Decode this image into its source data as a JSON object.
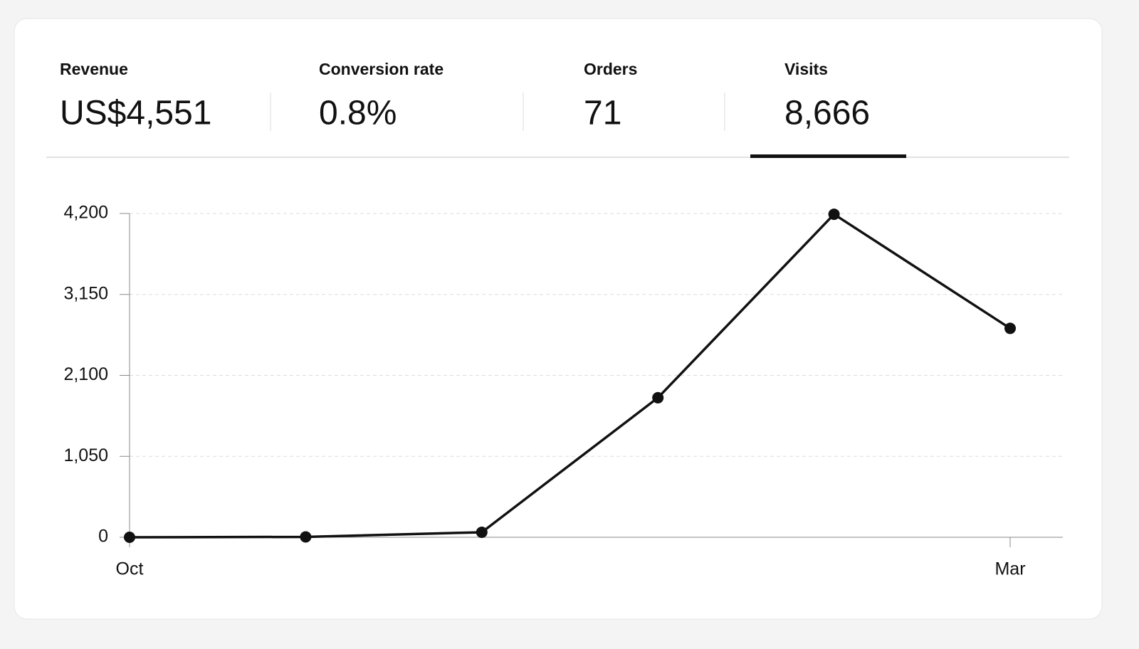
{
  "metrics": [
    {
      "label": "Revenue",
      "value": "US$4,551"
    },
    {
      "label": "Conversion rate",
      "value": "0.8%"
    },
    {
      "label": "Orders",
      "value": "71"
    },
    {
      "label": "Visits",
      "value": "8,666"
    }
  ],
  "chart_data": {
    "type": "line",
    "categories": [
      "Oct",
      null,
      null,
      null,
      null,
      "Mar"
    ],
    "values": [
      0,
      5,
      65,
      1810,
      4190,
      2710
    ],
    "color": "#111111",
    "ylim": [
      0,
      4200
    ],
    "yticks": [
      0,
      {
        "value": 1050,
        "label": "1,050"
      },
      {
        "value": 2100,
        "label": "2,100"
      },
      {
        "value": 3150,
        "label": "3,150"
      },
      {
        "value": 4200,
        "label": "4,200"
      }
    ],
    "grid": true
  }
}
